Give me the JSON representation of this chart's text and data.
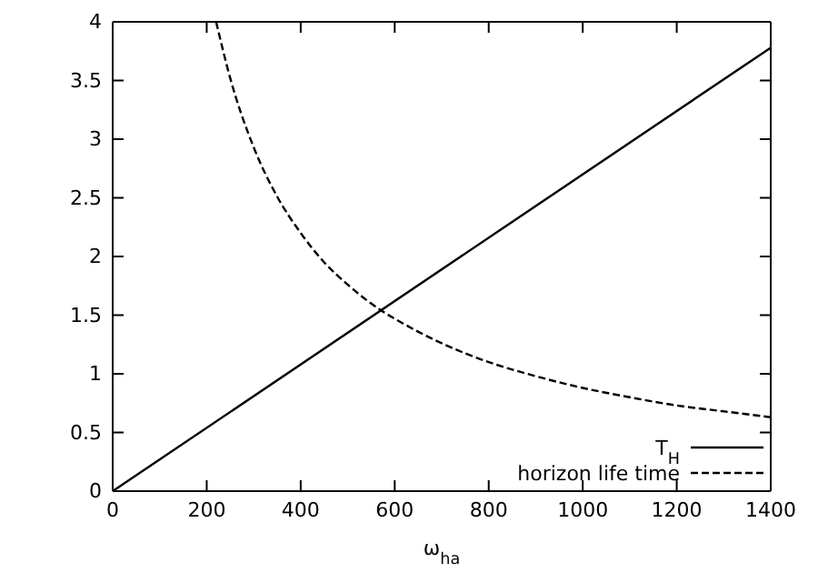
{
  "chart_data": {
    "type": "line",
    "xlabel": "ω$_{ha}$",
    "xlim": [
      0,
      1400
    ],
    "ylim": [
      0,
      4
    ],
    "xticks": [
      0,
      200,
      400,
      600,
      800,
      1000,
      1200,
      1400
    ],
    "yticks": [
      0,
      0.5,
      1,
      1.5,
      2,
      2.5,
      3,
      3.5,
      4
    ],
    "legend": "bottom right",
    "grid": false,
    "series": [
      {
        "name": "T$_{H}$",
        "color": "#000000",
        "line_style": "solid",
        "x": [
          0,
          1400
        ],
        "values": [
          0,
          3.78
        ]
      },
      {
        "name": "horizon life time",
        "color": "#000000",
        "line_style": "dashed",
        "x": [
          220,
          250,
          300,
          350,
          400,
          450,
          500,
          575,
          600,
          700,
          800,
          900,
          1000,
          1100,
          1200,
          1300,
          1400
        ],
        "values": [
          4.0,
          3.52,
          2.93,
          2.51,
          2.2,
          1.95,
          1.76,
          1.53,
          1.47,
          1.26,
          1.1,
          0.98,
          0.88,
          0.8,
          0.73,
          0.68,
          0.63
        ]
      }
    ]
  }
}
